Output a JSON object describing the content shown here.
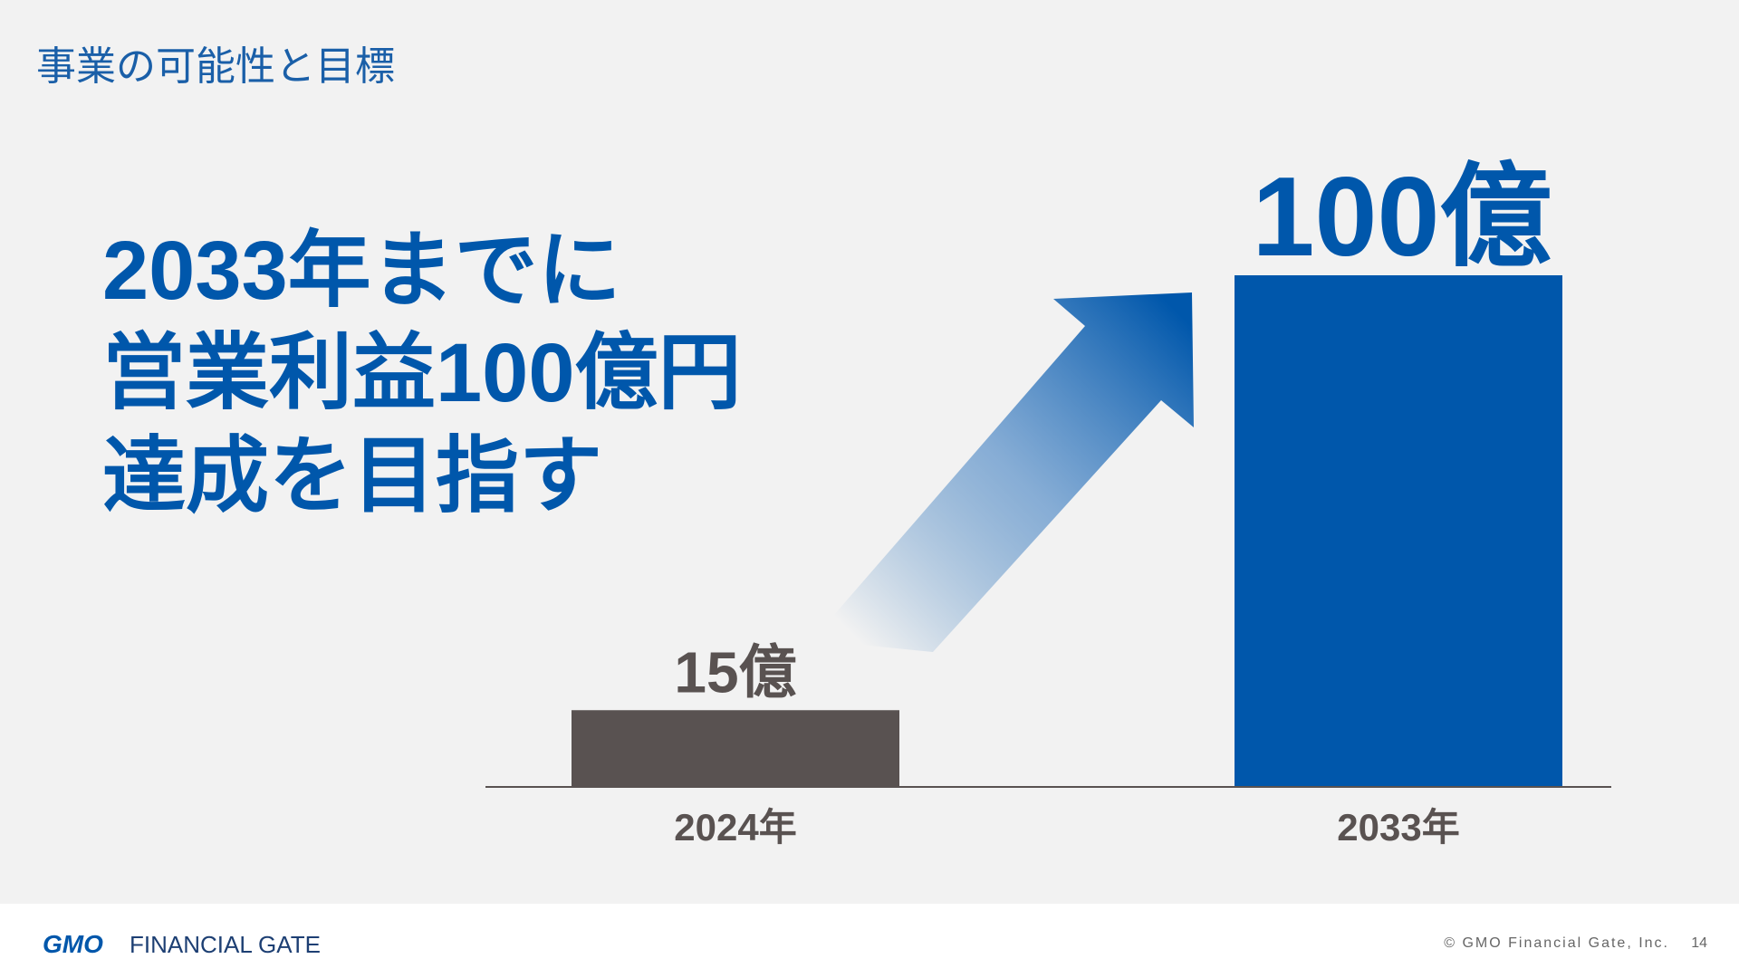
{
  "header": {
    "title": "事業の可能性と目標"
  },
  "headline": [
    "2033年までに",
    "営業利益100億円",
    "達成を目指す"
  ],
  "chart_data": {
    "type": "bar",
    "categories": [
      "2024年",
      "2033年"
    ],
    "values": [
      15,
      100
    ],
    "value_labels": [
      "15億",
      "100億"
    ],
    "colors": [
      "#595251",
      "#0057ab"
    ]
  },
  "footer": {
    "logo_mark": "GMO",
    "logo_text": "FINANCIAL GATE",
    "copyright": "© GMO Financial Gate, Inc.",
    "page": "14"
  }
}
